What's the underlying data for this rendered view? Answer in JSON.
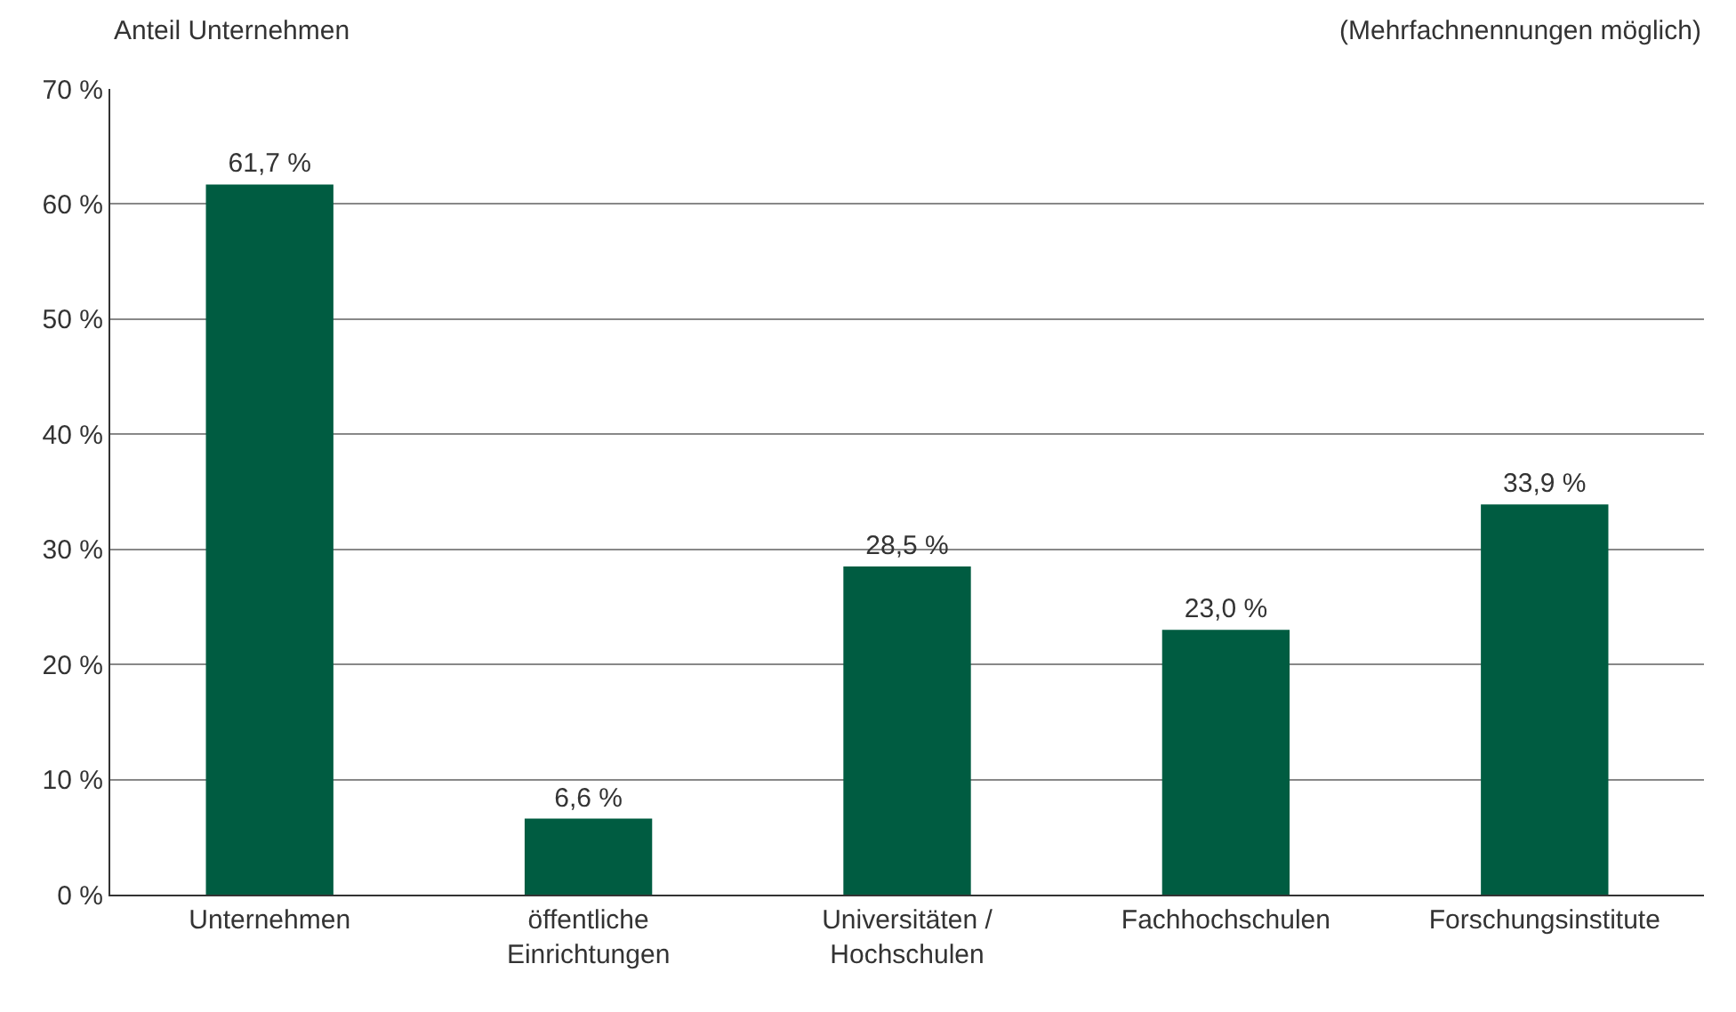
{
  "chart_data": {
    "type": "bar",
    "ylabel": "Anteil Unternehmen",
    "annotations": [
      "(Mehrfachnennungen möglich)"
    ],
    "categories": [
      "Unternehmen",
      "öffentliche\nEinrichtungen",
      "Universitäten /\nHochschulen",
      "Fachhochschulen",
      "Forschungsinstitute"
    ],
    "values": [
      61.7,
      6.6,
      28.5,
      23.0,
      33.9
    ],
    "value_labels": [
      "61,7 %",
      "6,6 %",
      "28,5 %",
      "23,0 %",
      "33,9 %"
    ],
    "color": "#005c41",
    "ylim": [
      0,
      70
    ],
    "yticks": [
      {
        "value": 0,
        "label": "0 %"
      },
      {
        "value": 10,
        "label": "10 %"
      },
      {
        "value": 20,
        "label": "20 %"
      },
      {
        "value": 30,
        "label": "30 %"
      },
      {
        "value": 40,
        "label": "40 %"
      },
      {
        "value": 50,
        "label": "50 %"
      },
      {
        "value": 60,
        "label": "60 %"
      },
      {
        "value": 70,
        "label": "70 %"
      }
    ],
    "grid": "y",
    "legend": false
  }
}
